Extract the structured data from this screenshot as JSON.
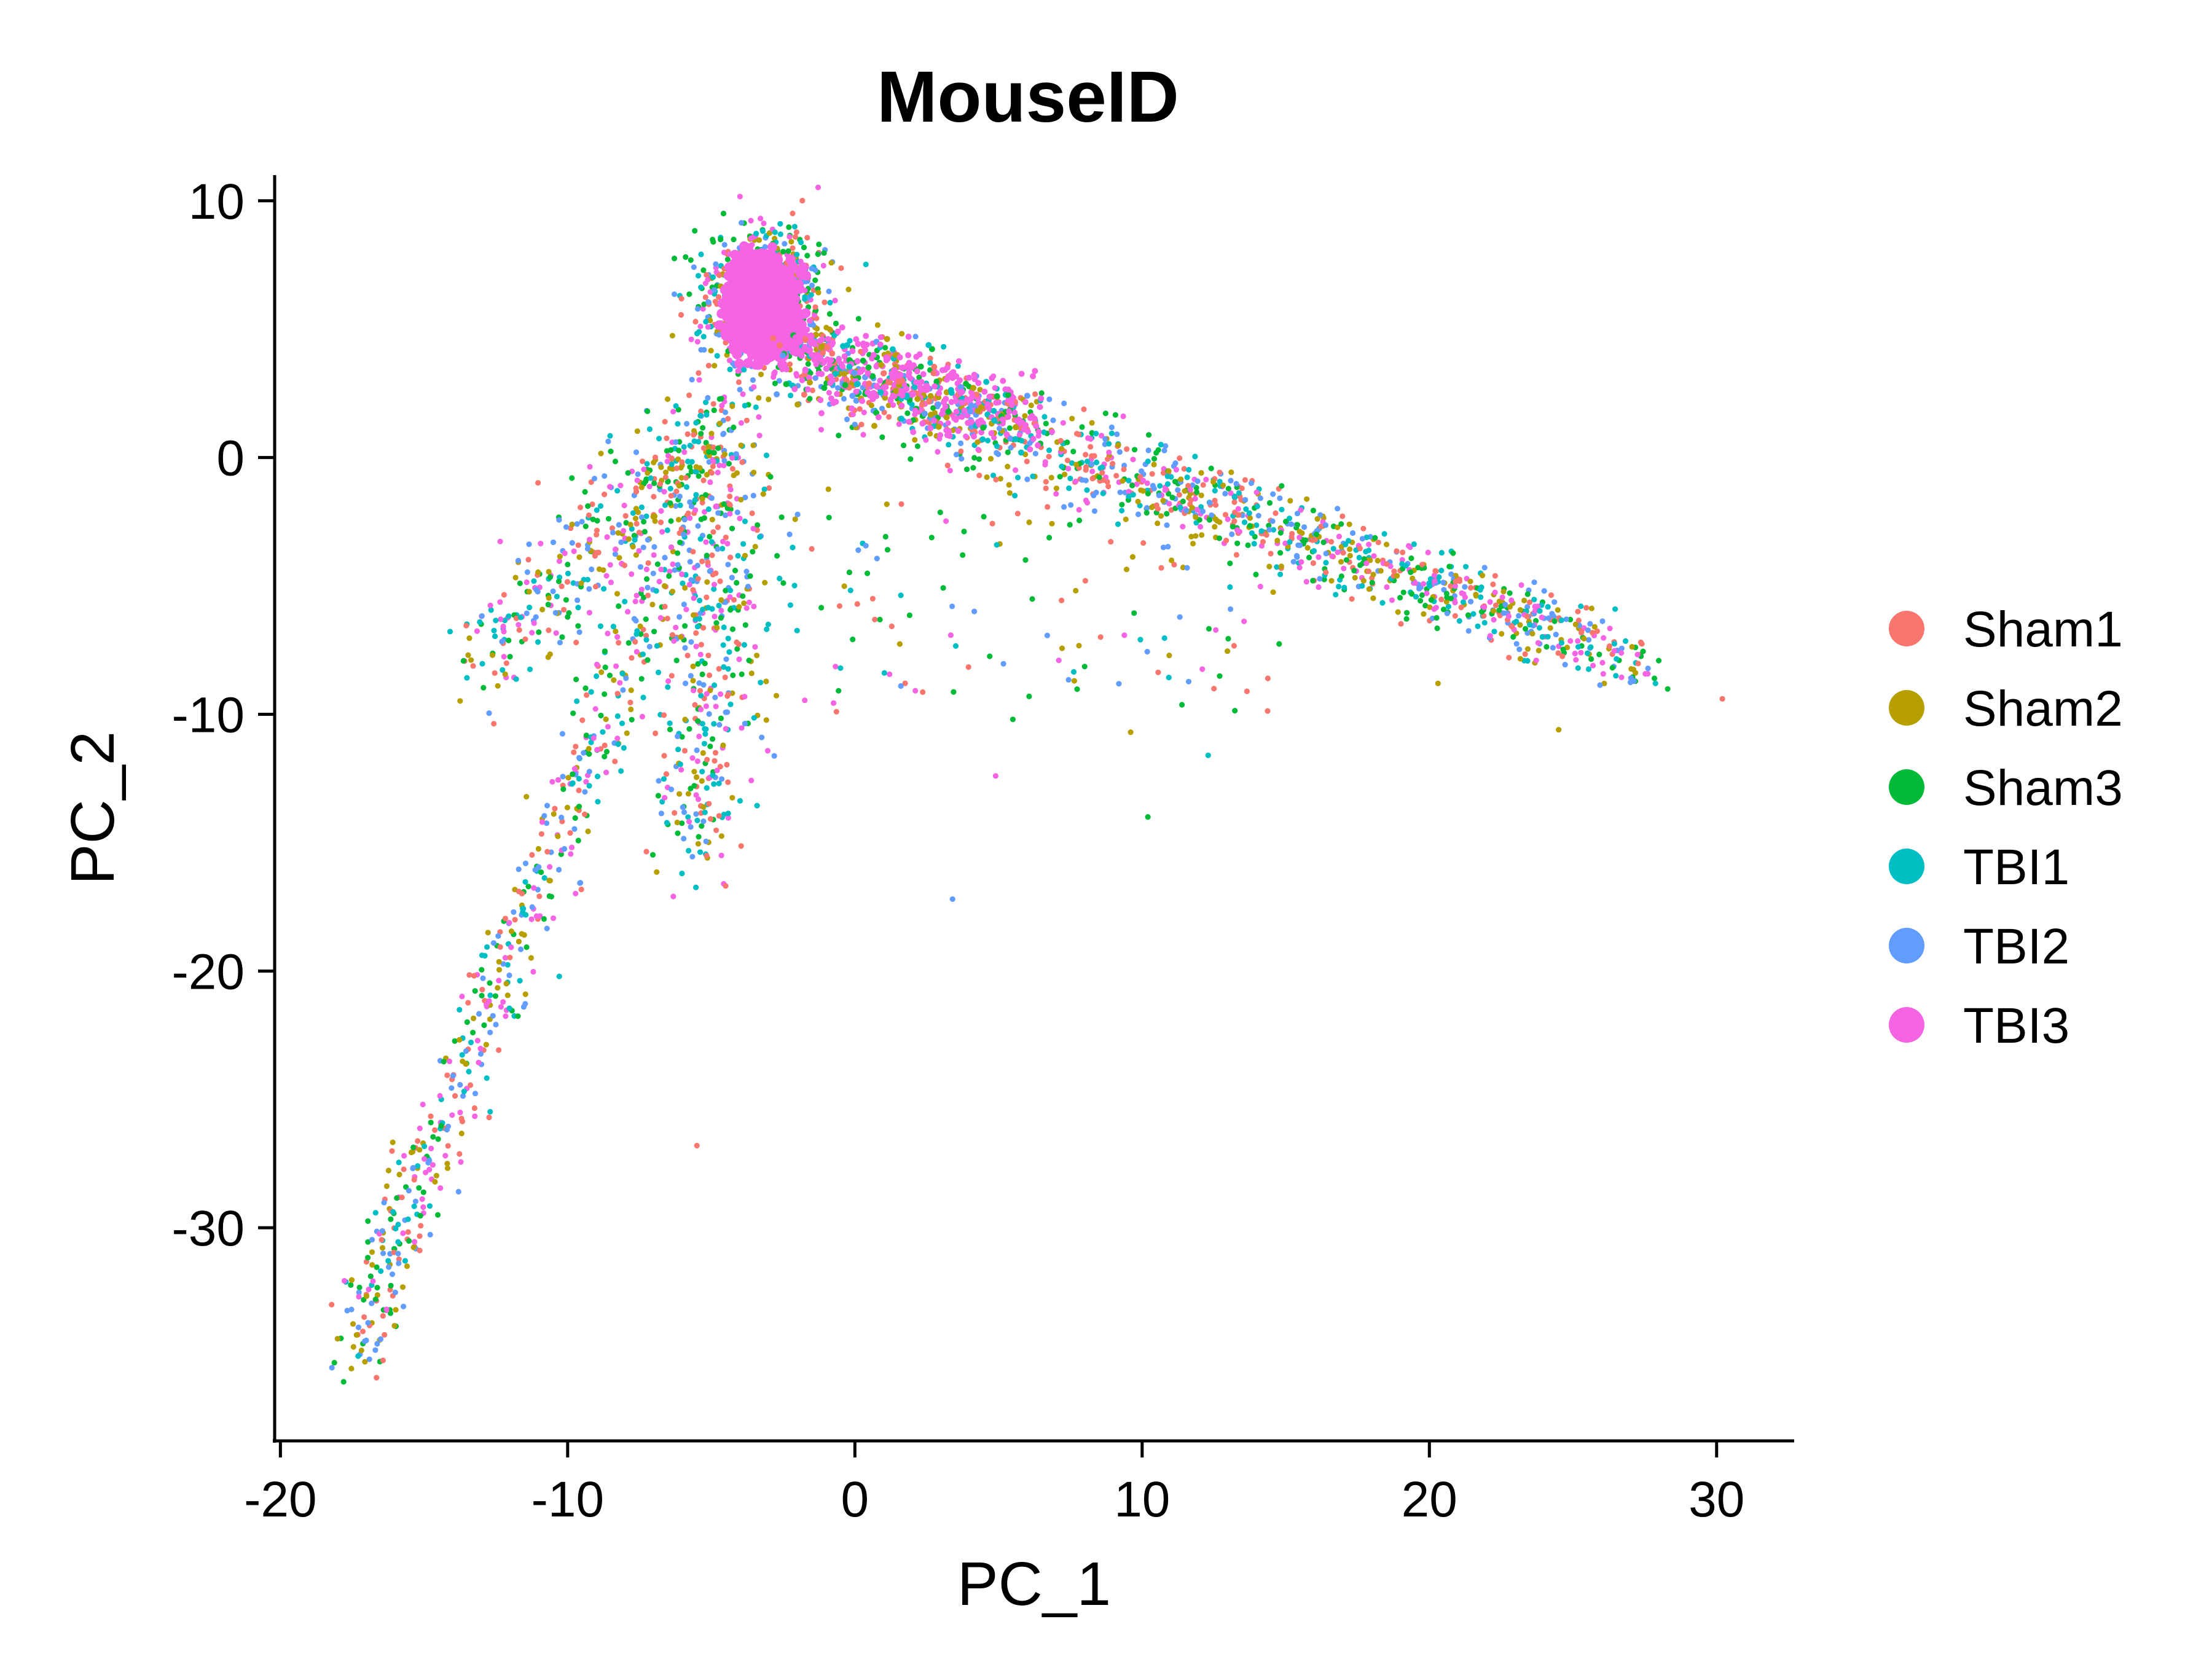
{
  "chart_data": {
    "type": "scatter",
    "title": "MouseID",
    "xlabel": "PC_1",
    "ylabel": "PC_2",
    "xlim": [
      -20.2,
      32.7
    ],
    "ylim": [
      -38.3,
      11.0
    ],
    "x_ticks": [
      -20,
      -10,
      0,
      10,
      20,
      30
    ],
    "y_ticks": [
      10,
      0,
      -10,
      -20,
      -30
    ],
    "grid": false,
    "legend_position": "right",
    "series": [
      {
        "name": "Sham1",
        "color": "#F8766D"
      },
      {
        "name": "Sham2",
        "color": "#B79F00"
      },
      {
        "name": "Sham3",
        "color": "#00BA38"
      },
      {
        "name": "TBI1",
        "color": "#00BFC4"
      },
      {
        "name": "TBI2",
        "color": "#619CFF"
      },
      {
        "name": "TBI3",
        "color": "#F564E3"
      }
    ],
    "dense_cluster": {
      "center": [
        -3.2,
        6.2
      ],
      "spread": [
        1.3,
        1.5
      ]
    },
    "point_structure": [
      {
        "from": [
          -3.5,
          4.5
        ],
        "to": [
          -17.5,
          -35.0
        ],
        "width": 0.9
      },
      {
        "from": [
          -5.0,
          1.0
        ],
        "to": [
          -13.0,
          -8.0
        ],
        "width": 1.3
      },
      {
        "from": [
          -4.5,
          1.0
        ],
        "to": [
          -5.5,
          -15.0
        ],
        "width": 1.4
      },
      {
        "from": [
          -2.0,
          4.0
        ],
        "to": [
          27.5,
          -8.0
        ],
        "width": 0.9
      }
    ],
    "outliers": [
      [
        -5.5,
        -26.8
      ],
      [
        9.6,
        -10.7
      ],
      [
        10.2,
        -14.0
      ],
      [
        12.3,
        -11.6
      ],
      [
        3.4,
        -17.2
      ],
      [
        4.9,
        -12.4
      ],
      [
        30.2,
        -9.4
      ],
      [
        24.5,
        -10.6
      ],
      [
        5.5,
        -10.2
      ],
      [
        -0.5,
        -8.2
      ],
      [
        1.6,
        -8.9
      ],
      [
        7.1,
        -7.9
      ],
      [
        12.5,
        -9.0
      ],
      [
        20.3,
        -8.8
      ],
      [
        -17.8,
        -36.0
      ]
    ]
  },
  "legend": {
    "items": [
      {
        "label": "Sham1",
        "color": "#F8766D"
      },
      {
        "label": "Sham2",
        "color": "#B79F00"
      },
      {
        "label": "Sham3",
        "color": "#00BA38"
      },
      {
        "label": "TBI1",
        "color": "#00BFC4"
      },
      {
        "label": "TBI2",
        "color": "#619CFF"
      },
      {
        "label": "TBI3",
        "color": "#F564E3"
      }
    ]
  }
}
